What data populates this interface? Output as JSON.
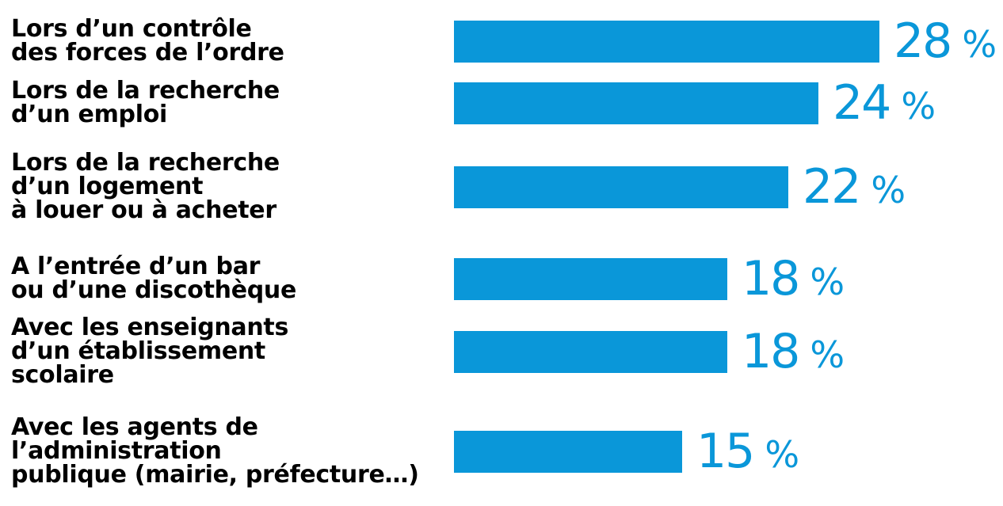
{
  "chart_data": {
    "type": "bar",
    "orientation": "horizontal",
    "categories": [
      "Lors d’un contrôle\ndes forces de l’ordre",
      "Lors de la recherche\nd’un emploi",
      "Lors de la recherche\nd’un logement\nà louer ou à acheter",
      "A l’entrée d’un bar\nou d’une discothèque",
      "Avec les enseignants\nd’un établissement\nscolaire",
      "Avec les agents de\nl’administration\npublique (mairie, préfecture…)"
    ],
    "values": [
      28,
      24,
      22,
      18,
      18,
      15
    ],
    "unit": "%",
    "bar_color": "#0a97d9",
    "value_color": "#0a97d9",
    "label_color": "#000000",
    "xlim": [
      0,
      28
    ]
  }
}
